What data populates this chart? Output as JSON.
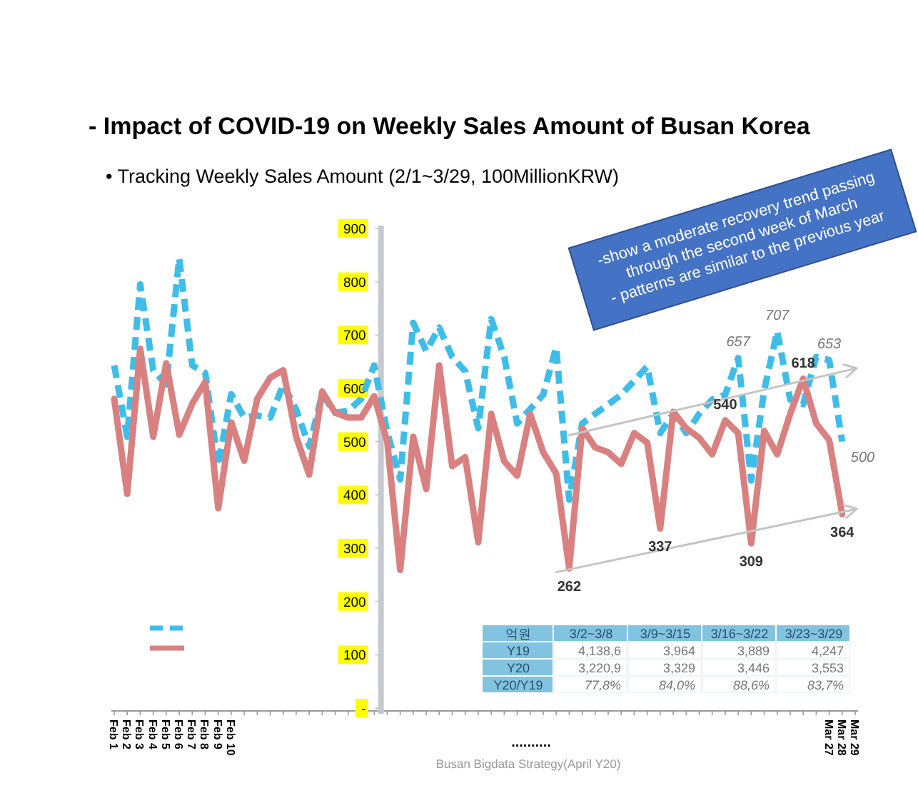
{
  "chart_data": {
    "type": "line",
    "title": "- Impact of COVID-19 on Weekly Sales Amount of Busan Korea",
    "subtitle": "• Tracking Weekly Sales Amount (2/1~3/29, 100MillionKRW)",
    "x": [
      "--02-01",
      "--02-02",
      "--02-03",
      "--02-04",
      "--02-05",
      "--02-06",
      "--02-07",
      "--02-08",
      "--02-09",
      "--02-10",
      "--02-11",
      "--02-12",
      "--02-13",
      "--02-14",
      "--02-15",
      "--02-16",
      "--02-17",
      "--02-18",
      "--02-19",
      "--02-20",
      "--02-21",
      "--02-22",
      "--02-23",
      "--02-24",
      "--02-25",
      "--02-26",
      "--02-27",
      "--02-28",
      "--02-29",
      "--03-01",
      "--03-02",
      "--03-03",
      "--03-04",
      "--03-05",
      "--03-06",
      "--03-07",
      "--03-08",
      "--03-09",
      "--03-10",
      "--03-11",
      "--03-12",
      "--03-13",
      "--03-14",
      "--03-15",
      "--03-16",
      "--03-17",
      "--03-18",
      "--03-19",
      "--03-20",
      "--03-21",
      "--03-22",
      "--03-23",
      "--03-24",
      "--03-25",
      "--03-26",
      "--03-27",
      "--03-28"
    ],
    "xlim": [
      "--02-01",
      "--03-29"
    ],
    "xticks": [
      {
        "value": "--02-01",
        "label": "Feb 1"
      },
      {
        "value": "--02-02",
        "label": "Feb 2"
      },
      {
        "value": "--02-03",
        "label": "Feb 3"
      },
      {
        "value": "--02-04",
        "label": "Feb 4"
      },
      {
        "value": "--02-05",
        "label": "Feb 5"
      },
      {
        "value": "--02-06",
        "label": "Feb 6"
      },
      {
        "value": "--02-07",
        "label": "Feb 7"
      },
      {
        "value": "--02-08",
        "label": "Feb 8"
      },
      {
        "value": "--02-09",
        "label": "Feb 9"
      },
      {
        "value": "--02-10",
        "label": "Feb 10"
      },
      {
        "value": "--02-11",
        "label": null
      },
      {
        "value": "--02-12",
        "label": null
      },
      {
        "value": "--02-13",
        "label": null
      },
      {
        "value": "--02-14",
        "label": null
      },
      {
        "value": "--02-15",
        "label": null
      },
      {
        "value": "--02-16",
        "label": null
      },
      {
        "value": "--02-17",
        "label": null
      },
      {
        "value": "--02-18",
        "label": null
      },
      {
        "value": "--02-19",
        "label": null
      },
      {
        "value": "--02-20",
        "label": null
      },
      {
        "value": "--02-21",
        "label": null
      },
      {
        "value": "--02-22",
        "label": null
      },
      {
        "value": "--02-23",
        "label": null
      },
      {
        "value": "--02-24",
        "label": null
      },
      {
        "value": "--02-25",
        "label": null
      },
      {
        "value": "--02-26",
        "label": null
      },
      {
        "value": "--02-27",
        "label": null
      },
      {
        "value": "--02-28",
        "label": null
      },
      {
        "value": "--02-29",
        "label": null
      },
      {
        "value": "--03-01",
        "label": null
      },
      {
        "value": "--03-02",
        "label": null
      },
      {
        "value": "--03-03",
        "label": null
      },
      {
        "value": "--03-04",
        "label": null
      },
      {
        "value": "--03-05",
        "label": null
      },
      {
        "value": "--03-06",
        "label": null
      },
      {
        "value": "--03-07",
        "label": null
      },
      {
        "value": "--03-08",
        "label": null
      },
      {
        "value": "--03-09",
        "label": null
      },
      {
        "value": "--03-10",
        "label": null
      },
      {
        "value": "--03-11",
        "label": null
      },
      {
        "value": "--03-12",
        "label": null
      },
      {
        "value": "--03-13",
        "label": null
      },
      {
        "value": "--03-14",
        "label": null
      },
      {
        "value": "--03-15",
        "label": null
      },
      {
        "value": "--03-16",
        "label": null
      },
      {
        "value": "--03-17",
        "label": null
      },
      {
        "value": "--03-18",
        "label": null
      },
      {
        "value": "--03-19",
        "label": null
      },
      {
        "value": "--03-20",
        "label": null
      },
      {
        "value": "--03-21",
        "label": null
      },
      {
        "value": "--03-22",
        "label": null
      },
      {
        "value": "--03-23",
        "label": null
      },
      {
        "value": "--03-24",
        "label": null
      },
      {
        "value": "--03-25",
        "label": null
      },
      {
        "value": "--03-26",
        "label": null
      },
      {
        "value": "--03-27",
        "label": "Mar 27"
      },
      {
        "value": "--03-28",
        "label": "Mar 28"
      },
      {
        "value": "--03-29",
        "label": "Mar 29"
      }
    ],
    "ylim": [
      0,
      900
    ],
    "yticks": [
      {
        "value": 0,
        "label": "-"
      },
      100,
      200,
      300,
      400,
      500,
      600,
      700,
      800,
      900
    ],
    "series": [
      {
        "color": "#3fbde9",
        "line_style": "dashed",
        "values": [
          643,
          509,
          795,
          634,
          607,
          844,
          643,
          629,
          455,
          589,
          545,
          549,
          545,
          607,
          560,
          491,
          589,
          554,
          558,
          580,
          643,
          518,
          429,
          723,
          670,
          714,
          659,
          632,
          525,
          730,
          659,
          534,
          561,
          588,
          677,
          391,
          534,
          552,
          570,
          588,
          614,
          641,
          516,
          552,
          516,
          552,
          579,
          588,
          657,
          427,
          596,
          707,
          579,
          570,
          659,
          653,
          500
        ],
        "value_labels": [
          null,
          null,
          null,
          null,
          null,
          null,
          null,
          null,
          null,
          null,
          null,
          null,
          null,
          null,
          null,
          null,
          null,
          null,
          null,
          null,
          null,
          null,
          null,
          null,
          null,
          null,
          null,
          null,
          null,
          null,
          null,
          null,
          null,
          null,
          null,
          null,
          null,
          null,
          null,
          null,
          null,
          null,
          null,
          null,
          null,
          null,
          null,
          null,
          "657",
          null,
          null,
          "707",
          null,
          null,
          null,
          "653",
          "500"
        ]
      },
      {
        "color": "#d98080",
        "line_style": "solid",
        "values": [
          580,
          402,
          674,
          509,
          647,
          513,
          571,
          612,
          375,
          536,
          464,
          580,
          620,
          634,
          509,
          438,
          594,
          554,
          545,
          545,
          585,
          500,
          259,
          509,
          411,
          643,
          454,
          471,
          311,
          552,
          463,
          436,
          552,
          480,
          440,
          262,
          525,
          489,
          480,
          458,
          516,
          498,
          337,
          556,
          525,
          507,
          476,
          540,
          516,
          309,
          520,
          476,
          552,
          618,
          534,
          503,
          364
        ],
        "value_labels": [
          null,
          null,
          null,
          null,
          null,
          null,
          null,
          null,
          null,
          null,
          null,
          null,
          null,
          null,
          null,
          null,
          null,
          null,
          null,
          null,
          null,
          null,
          null,
          null,
          null,
          null,
          null,
          null,
          null,
          null,
          null,
          null,
          null,
          null,
          null,
          "262",
          null,
          null,
          null,
          null,
          null,
          null,
          "337",
          null,
          null,
          null,
          null,
          "540",
          null,
          "309",
          null,
          null,
          null,
          "618",
          null,
          null,
          "364"
        ]
      },
      {
        "color": "#c4c4c4",
        "line_style": "solid",
        "x": [
          "--03-07",
          "--03-29"
        ],
        "values": [
          512,
          637
        ]
      },
      {
        "color": "#c4c4c4",
        "line_style": "solid",
        "x": [
          "--03-06",
          "--03-29"
        ],
        "values": [
          255,
          373
        ]
      }
    ],
    "annotations": [
      "-show a moderate recovery trend passing",
      "through the second week of March",
      "- patterns are similar to the previous year",
      "..........",
      "Busan Bigdata Strategy(April Y20)",
      "억원",
      "3/2~3/8",
      "3/9~3/15",
      "3/16~3/22",
      "3/23~3/29",
      "Y19",
      "4,138,6",
      "3,964",
      "3,889",
      "4,247",
      "Y20",
      "3,220,9",
      "3,329",
      "3,446",
      "3,553",
      "Y20/Y19",
      "77,8%",
      "84,0%",
      "88,6%",
      "83,7%"
    ]
  }
}
